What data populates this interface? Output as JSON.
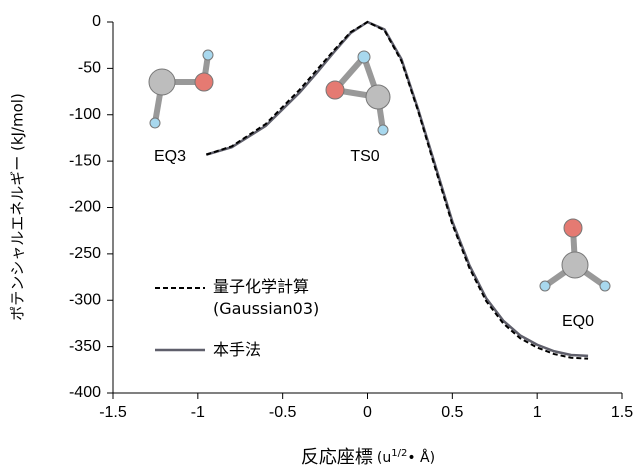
{
  "chart_data": {
    "type": "line",
    "ylabel": "ポテンシャルエネルギー (kJ/mol)",
    "xlabel": {
      "main": "反応座標",
      "unit_pre": "(u",
      "unit_sup": "1/2",
      "unit_post": "• Å)"
    },
    "annotations": [
      "EQ3",
      "TS0",
      "EQ0"
    ],
    "xlim": [
      -1.5,
      1.5
    ],
    "xticks": [
      -1.5,
      -1,
      -0.5,
      0,
      0.5,
      1,
      1.5
    ],
    "ylim": [
      -400,
      0
    ],
    "yticks": [
      0,
      -50,
      -100,
      -150,
      -200,
      -250,
      -300,
      -350,
      -400
    ],
    "x": [
      -0.95,
      -0.8,
      -0.6,
      -0.4,
      -0.3,
      -0.2,
      -0.1,
      0,
      0.1,
      0.2,
      0.3,
      0.4,
      0.5,
      0.6,
      0.7,
      0.8,
      0.9,
      1.0,
      1.1,
      1.2,
      1.3
    ],
    "series": [
      {
        "name": "量子化学計算\n(Gaussian03)",
        "color": "#000000",
        "dashed": true,
        "values": [
          -143,
          -134,
          -110,
          -73,
          -52,
          -31,
          -11,
          0,
          -9,
          -42,
          -97,
          -158,
          -218,
          -265,
          -301,
          -325,
          -341,
          -351,
          -358,
          -362,
          -363
        ]
      },
      {
        "name": "本手法",
        "color": "#5f5f6b",
        "dashed": false,
        "values": [
          -143,
          -135,
          -112,
          -76,
          -55,
          -33,
          -12,
          0,
          -8,
          -40,
          -95,
          -155,
          -215,
          -262,
          -298,
          -322,
          -338,
          -348,
          -355,
          -359,
          -360
        ]
      }
    ]
  }
}
